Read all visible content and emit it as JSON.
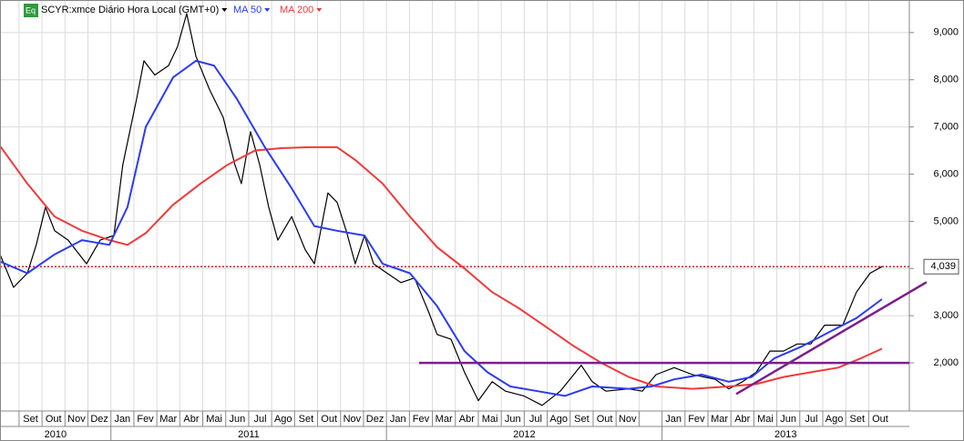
{
  "chart_data": {
    "type": "line",
    "series": [
      {
        "name": "SCYR:xmce Diário Hora Local (GMT+0)",
        "color": "#000000",
        "x": [
          -0.83,
          -0.24,
          0.36,
          0.75,
          1.15,
          1.55,
          2.14,
          2.94,
          3.53,
          4.13,
          4.52,
          5.12,
          5.44,
          5.91,
          6.51,
          6.9,
          7.3,
          7.7,
          8.29,
          8.89,
          9.4,
          9.68,
          10.08,
          10.48,
          10.87,
          11.27,
          11.87,
          12.46,
          12.86,
          13.45,
          13.85,
          14.25,
          14.64,
          15.04,
          15.44,
          16.03,
          16.63,
          17.22,
          17.82,
          18.21,
          18.81,
          19.4,
          20.0,
          20.6,
          21.19,
          21.98,
          22.78,
          23.57,
          24.48,
          24.96,
          25.56,
          26.55,
          27.14,
          27.74,
          28.53,
          29.33,
          30.32,
          30.91,
          31.51,
          32.1,
          32.7,
          33.29,
          33.89,
          34.48,
          35.08,
          35.87,
          36.47,
          37.06,
          37.58
        ],
        "values": [
          4.3,
          3.6,
          3.9,
          4.5,
          5.3,
          4.8,
          4.6,
          4.1,
          4.6,
          4.7,
          6.2,
          7.6,
          8.4,
          8.1,
          8.3,
          8.7,
          9.4,
          8.5,
          7.8,
          7.2,
          6.2,
          5.8,
          6.9,
          6.2,
          5.3,
          4.6,
          5.1,
          4.4,
          4.1,
          5.6,
          5.4,
          4.8,
          4.1,
          4.7,
          4.1,
          3.9,
          3.7,
          3.8,
          3.1,
          2.6,
          2.5,
          1.8,
          1.2,
          1.6,
          1.4,
          1.3,
          1.1,
          1.4,
          1.95,
          1.6,
          1.4,
          1.45,
          1.4,
          1.75,
          1.9,
          1.75,
          1.65,
          1.45,
          1.6,
          1.8,
          2.25,
          2.25,
          2.4,
          2.4,
          2.8,
          2.8,
          3.5,
          3.9,
          4.04
        ]
      },
      {
        "name": "MA 50",
        "color": "#2b3cf0",
        "x": [
          -0.83,
          0.36,
          1.55,
          2.74,
          3.93,
          4.72,
          5.52,
          6.71,
          7.7,
          8.49,
          9.48,
          10.67,
          11.87,
          12.86,
          13.85,
          15.04,
          15.83,
          17.02,
          18.21,
          19.4,
          20.4,
          21.39,
          22.58,
          23.77,
          24.96,
          26.55,
          27.54,
          28.53,
          29.72,
          30.91,
          31.9,
          32.9,
          34.09,
          35.28,
          36.47,
          37.58
        ],
        "values": [
          4.15,
          3.9,
          4.3,
          4.6,
          4.5,
          5.3,
          7.0,
          8.05,
          8.4,
          8.3,
          7.6,
          6.6,
          5.7,
          4.9,
          4.8,
          4.7,
          4.1,
          3.9,
          3.2,
          2.25,
          1.8,
          1.5,
          1.4,
          1.3,
          1.5,
          1.45,
          1.5,
          1.65,
          1.75,
          1.6,
          1.7,
          2.1,
          2.35,
          2.65,
          2.95,
          3.35
        ]
      },
      {
        "name": "MA 200",
        "color": "#f03a3a",
        "x": [
          -0.83,
          0.36,
          1.55,
          2.74,
          3.93,
          4.72,
          5.52,
          6.71,
          7.9,
          9.09,
          10.28,
          11.47,
          12.66,
          13.85,
          14.64,
          15.83,
          17.02,
          18.21,
          19.4,
          20.6,
          21.79,
          22.98,
          24.17,
          25.36,
          26.55,
          27.74,
          29.33,
          30.91,
          32.1,
          33.29,
          34.48,
          35.67,
          36.67,
          37.58
        ],
        "values": [
          6.6,
          5.8,
          5.1,
          4.8,
          4.6,
          4.5,
          4.75,
          5.35,
          5.8,
          6.2,
          6.5,
          6.55,
          6.57,
          6.57,
          6.3,
          5.8,
          5.1,
          4.45,
          4.0,
          3.5,
          3.15,
          2.75,
          2.35,
          2.0,
          1.7,
          1.5,
          1.45,
          1.5,
          1.55,
          1.7,
          1.8,
          1.9,
          2.1,
          2.3
        ]
      }
    ],
    "categories": [
      "Set",
      "Out",
      "Nov",
      "Dez",
      "Jan",
      "Fev",
      "Mar",
      "Abr",
      "Mai",
      "Jun",
      "Jul",
      "Ago",
      "Set",
      "Out",
      "Nov",
      "Dez",
      "Jan",
      "Fev",
      "Mar",
      "Abr",
      "Mai",
      "Jun",
      "Jul",
      "Ago",
      "Set",
      "Out",
      "Nov",
      null,
      "Jan",
      "Fev",
      "Mar",
      "Abr",
      "Mai",
      "Jun",
      "Jul",
      "Ago",
      "Set",
      "Out"
    ],
    "years": [
      "2010",
      "2011",
      "2012",
      "2013"
    ],
    "xlim": [
      -0.83,
      38.77
    ],
    "ylim": [
      0.98,
      9.69
    ],
    "yticks": [
      {
        "value": 2,
        "label": "2,000"
      },
      {
        "value": 3,
        "label": "3,000"
      },
      {
        "value": 4,
        "label": "4,000"
      },
      {
        "value": 5,
        "label": "5,000"
      },
      {
        "value": 6,
        "label": "6,000"
      },
      {
        "value": 7,
        "label": "7,000"
      },
      {
        "value": 8,
        "label": "8,000"
      },
      {
        "value": 9,
        "label": "9,000"
      }
    ],
    "last_price": {
      "value": 4.039,
      "label": "4,039",
      "color": "#d42020"
    },
    "trend_lines": [
      {
        "color": "#7b1f8c",
        "x": [
          17.42,
          38.77
        ],
        "values": [
          2,
          2
        ]
      },
      {
        "color": "#7b1f8c",
        "x": [
          31.23,
          39.52
        ],
        "values": [
          1.34,
          3.71
        ]
      }
    ],
    "grid": true
  }
}
